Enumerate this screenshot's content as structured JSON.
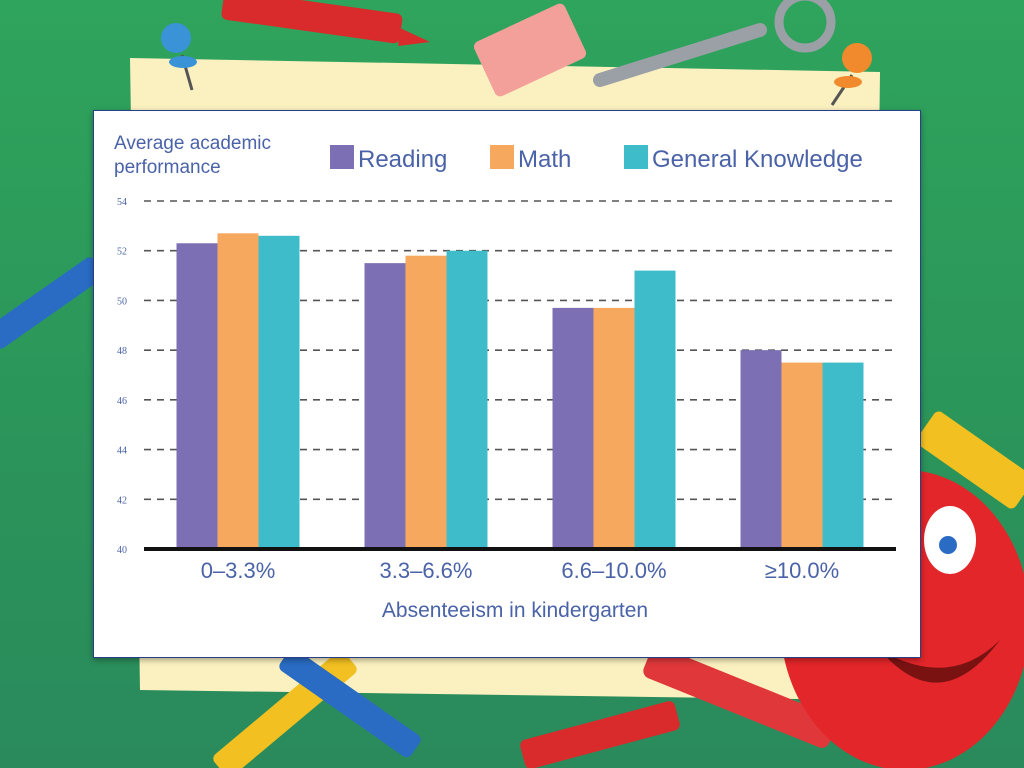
{
  "chart_data": {
    "type": "bar",
    "ylabel": "Average academic performance",
    "ylabel_lines": [
      "Average academic",
      "performance"
    ],
    "xlabel": "Absenteeism in kindergarten",
    "categories": [
      "0–3.3%",
      "3.3–6.6%",
      "6.6–10.0%",
      "≥10.0%"
    ],
    "series": [
      {
        "name": "Reading",
        "color": "#7d6fb4",
        "values": [
          52.3,
          51.5,
          49.7,
          48.0
        ]
      },
      {
        "name": "Math",
        "color": "#f7a85f",
        "values": [
          52.7,
          51.8,
          49.7,
          47.5
        ]
      },
      {
        "name": "General Knowledge",
        "color": "#3fbcc9",
        "values": [
          52.6,
          52.0,
          51.2,
          47.5
        ]
      }
    ],
    "ylim": [
      40,
      54
    ],
    "yticks": [
      "40",
      "42",
      "44",
      "46",
      "48",
      "50",
      "52",
      "54"
    ],
    "grid": true,
    "legend_position": "top"
  }
}
